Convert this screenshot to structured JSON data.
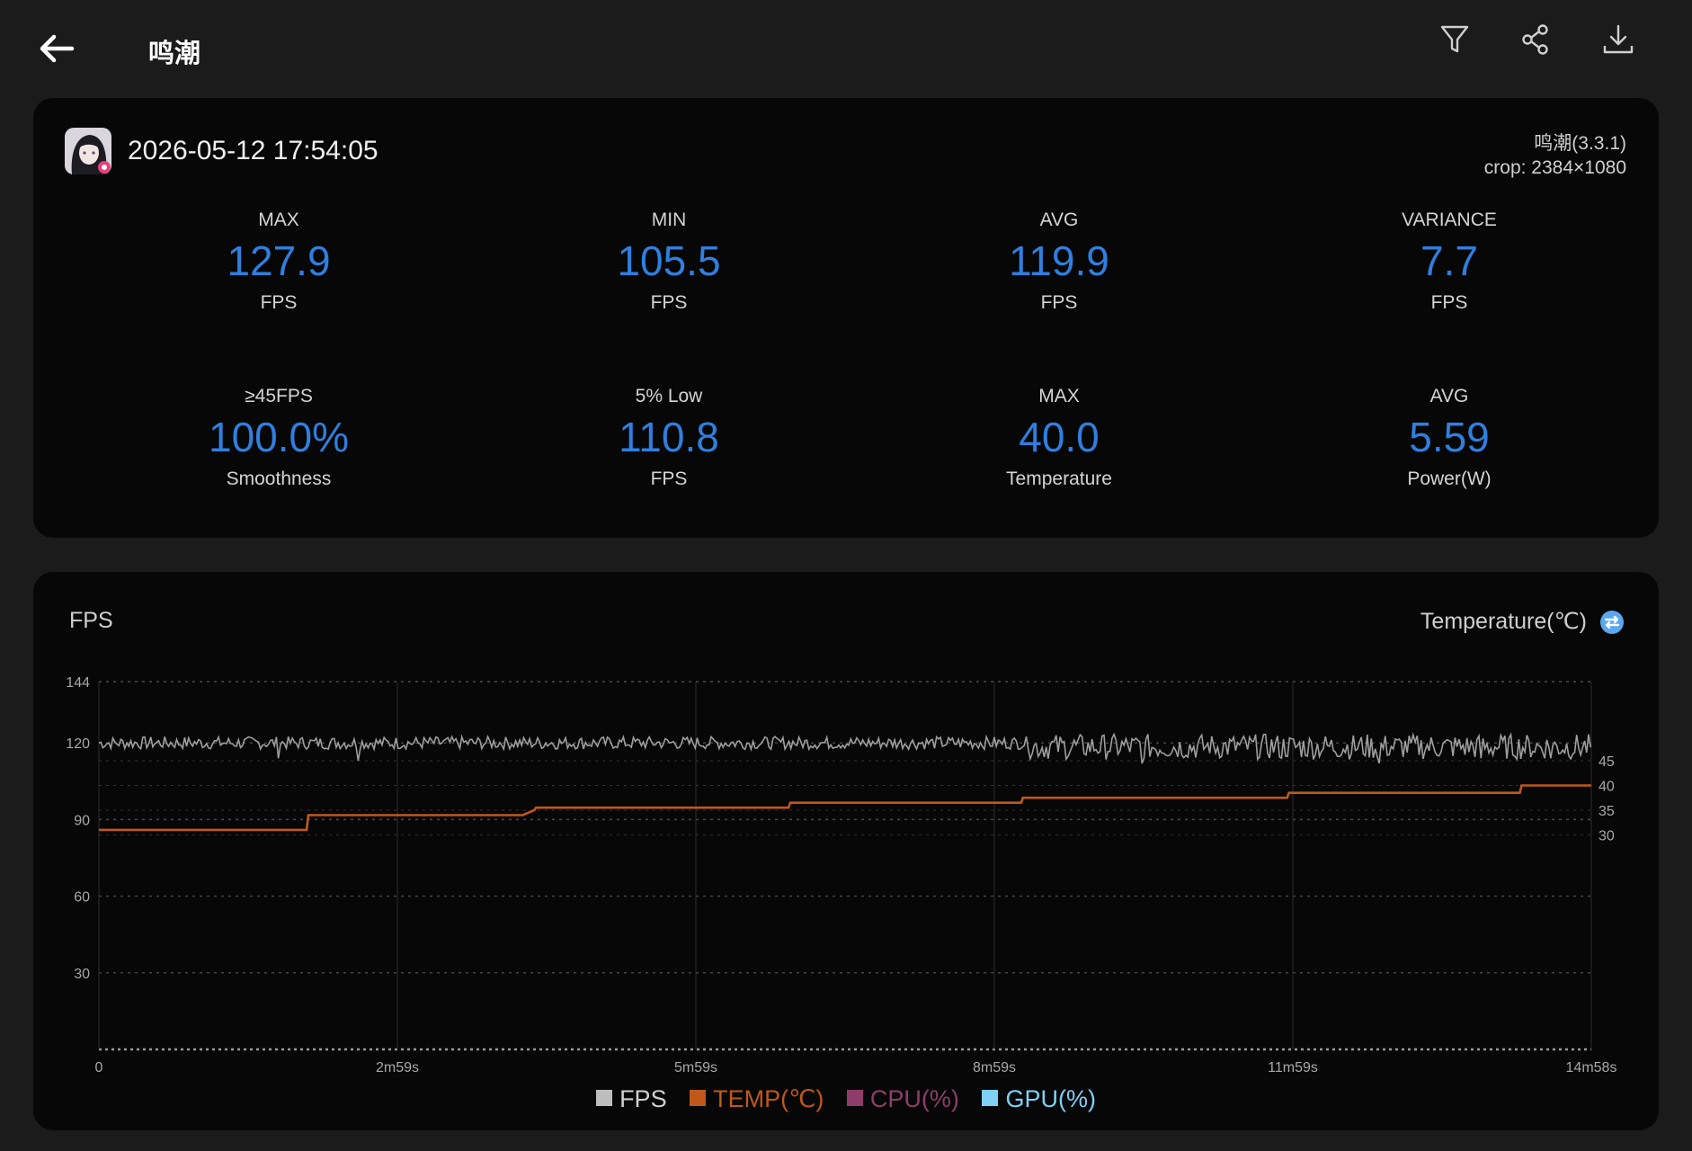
{
  "header": {
    "title": "鸣潮",
    "icons": [
      "back-arrow-icon",
      "filter-icon",
      "share-icon",
      "download-icon"
    ]
  },
  "summary": {
    "datetime": "2026-05-12 17:54:05",
    "app_version": "鸣潮(3.3.1)",
    "crop": "crop: 2384×1080",
    "stats": [
      {
        "label": "MAX",
        "value": "127.9",
        "unit": "FPS"
      },
      {
        "label": "MIN",
        "value": "105.5",
        "unit": "FPS"
      },
      {
        "label": "AVG",
        "value": "119.9",
        "unit": "FPS"
      },
      {
        "label": "VARIANCE",
        "value": "7.7",
        "unit": "FPS"
      },
      {
        "label": "≥45FPS",
        "value": "100.0%",
        "unit": "Smoothness"
      },
      {
        "label": "5% Low",
        "value": "110.8",
        "unit": "FPS"
      },
      {
        "label": "MAX",
        "value": "40.0",
        "unit": "Temperature"
      },
      {
        "label": "AVG",
        "value": "5.59",
        "unit": "Power(W)"
      }
    ]
  },
  "chart": {
    "left_title": "FPS",
    "right_title": "Temperature(℃)",
    "legend": [
      {
        "name": "FPS",
        "color": "#bdbdbd"
      },
      {
        "name": "TEMP(℃)",
        "color": "#c0581a"
      },
      {
        "name": "CPU(%)",
        "color": "#8e3d6b"
      },
      {
        "name": "GPU(%)",
        "color": "#7fd0f5"
      }
    ]
  },
  "chart_data": {
    "type": "line",
    "x_ticks": [
      "0",
      "2m59s",
      "5m59s",
      "8m59s",
      "11m59s",
      "14m58s"
    ],
    "x_range_seconds": [
      0,
      898
    ],
    "y_left": {
      "label": "FPS",
      "range": [
        0,
        144
      ],
      "ticks": [
        30,
        60,
        90,
        120,
        144
      ]
    },
    "y_right": {
      "label": "Temperature(℃)",
      "ticks": [
        30,
        35,
        40,
        45
      ]
    },
    "grid": true,
    "legend_placement": "bottom",
    "series": [
      {
        "name": "FPS",
        "axis": "left",
        "segments": [
          {
            "t_range": [
              0,
              560
            ],
            "mean": 120,
            "spread": 2.5
          },
          {
            "t_range": [
              560,
              898
            ],
            "mean": 118.5,
            "spread": 5
          }
        ],
        "dips": [
          [
            108,
            114
          ],
          [
            156,
            113
          ],
          [
            628,
            112
          ],
          [
            668,
            116
          ],
          [
            712,
            114
          ],
          [
            770,
            112
          ],
          [
            832,
            114
          ],
          [
            874,
            114
          ]
        ]
      },
      {
        "name": "TEMP(℃)",
        "axis": "right",
        "t": [
          0,
          125,
          126,
          255,
          262,
          263,
          415,
          416,
          555,
          556,
          715,
          716,
          855,
          856,
          898
        ],
        "values": [
          31,
          31,
          34,
          34,
          35,
          35.5,
          35.5,
          36.5,
          36.5,
          37.5,
          37.5,
          38.5,
          38.5,
          40,
          40
        ]
      }
    ]
  }
}
